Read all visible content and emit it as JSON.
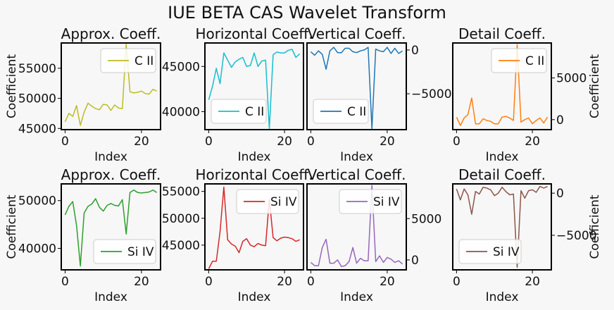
{
  "figure": {
    "title": "IUE BETA CAS Wavelet Transform"
  },
  "chart_data": [
    {
      "type": "line",
      "title": "Approx. Coeff.",
      "xlabel": "Index",
      "ylabel": "Coefficient",
      "ylabel_side": "left",
      "yaxis_side": "left",
      "xlim": [
        -1,
        25
      ],
      "ylim": [
        44800,
        59200
      ],
      "xticks": [
        0,
        20
      ],
      "xtick_labels": [
        "0",
        "20"
      ],
      "yticks": [
        45000,
        50000,
        55000
      ],
      "ytick_labels": [
        "45000",
        "50000",
        "55000"
      ],
      "legend_position": "upper right",
      "series": [
        {
          "name": "C II",
          "color": "#bcbd22",
          "x": [
            0,
            1,
            2,
            3,
            4,
            5,
            6,
            7,
            8,
            9,
            10,
            11,
            12,
            13,
            14,
            15,
            16,
            17,
            18,
            19,
            20,
            21,
            22,
            23,
            24
          ],
          "y": [
            46100,
            47500,
            47000,
            48800,
            45500,
            47700,
            49200,
            48700,
            48300,
            48100,
            49000,
            48900,
            48000,
            48900,
            48400,
            48300,
            59000,
            51100,
            50900,
            51000,
            51200,
            50800,
            50700,
            51500,
            51200
          ]
        }
      ]
    },
    {
      "type": "line",
      "title": "Horizontal Coeff.",
      "xlabel": "Index",
      "ylabel": "",
      "yaxis_side": "left",
      "xlim": [
        -1,
        25
      ],
      "ylim": [
        38000,
        47600
      ],
      "xticks": [
        0,
        20
      ],
      "xtick_labels": [
        "0",
        "20"
      ],
      "yticks": [
        40000,
        45000
      ],
      "ytick_labels": [
        "40000",
        "45000"
      ],
      "legend_position": "lower left",
      "series": [
        {
          "name": "C II",
          "color": "#17becf",
          "x": [
            0,
            1,
            2,
            3,
            4,
            5,
            6,
            7,
            8,
            9,
            10,
            11,
            12,
            13,
            14,
            15,
            16,
            17,
            18,
            19,
            20,
            21,
            22,
            23,
            24
          ],
          "y": [
            41300,
            42800,
            44800,
            43100,
            46500,
            45700,
            44900,
            45500,
            45800,
            46000,
            45000,
            45100,
            46500,
            45000,
            45600,
            45700,
            38100,
            46300,
            46600,
            46500,
            46500,
            46800,
            46900,
            46000,
            46400
          ]
        }
      ]
    },
    {
      "type": "line",
      "title": "Vertical Coeff.",
      "xlabel": "Index",
      "ylabel": "",
      "yaxis_side": "right",
      "xlim": [
        -1,
        25
      ],
      "ylim": [
        -9100,
        800
      ],
      "xticks": [
        0,
        20
      ],
      "xtick_labels": [
        "0",
        "20"
      ],
      "yticks": [
        -5000,
        0
      ],
      "ytick_labels": [
        "−5000",
        "0"
      ],
      "legend_position": "lower left",
      "series": [
        {
          "name": "C II",
          "color": "#1f77b4",
          "x": [
            0,
            1,
            2,
            3,
            4,
            5,
            6,
            7,
            8,
            9,
            10,
            11,
            12,
            13,
            14,
            15,
            16,
            17,
            18,
            19,
            20,
            21,
            22,
            23,
            24
          ],
          "y": [
            -200,
            -600,
            -100,
            -500,
            -2200,
            -100,
            300,
            -300,
            -300,
            200,
            200,
            -200,
            -300,
            -100,
            0,
            300,
            -9000,
            100,
            -100,
            -200,
            300,
            -400,
            200,
            -400,
            -100
          ]
        }
      ]
    },
    {
      "type": "line",
      "title": "Detail Coeff.",
      "xlabel": "Index",
      "ylabel": "Coefficient",
      "ylabel_side": "right",
      "yaxis_side": "right",
      "xlim": [
        -1,
        25
      ],
      "ylim": [
        -1200,
        9200
      ],
      "xticks": [
        0,
        20
      ],
      "xtick_labels": [
        "0",
        "20"
      ],
      "yticks": [
        0,
        5000
      ],
      "ytick_labels": [
        "0",
        "5000"
      ],
      "legend_position": "upper right",
      "series": [
        {
          "name": "C II",
          "color": "#ff7f0e",
          "x": [
            0,
            1,
            2,
            3,
            4,
            5,
            6,
            7,
            8,
            9,
            10,
            11,
            12,
            13,
            14,
            15,
            16,
            17,
            18,
            19,
            20,
            21,
            22,
            23,
            24
          ],
          "y": [
            300,
            -700,
            200,
            600,
            2600,
            -500,
            -500,
            100,
            -100,
            -200,
            -500,
            -500,
            300,
            400,
            200,
            -100,
            9000,
            -300,
            0,
            200,
            -500,
            -100,
            200,
            -400,
            300
          ]
        }
      ]
    },
    {
      "type": "line",
      "title": "Approx. Coeff.",
      "xlabel": "Index",
      "ylabel": "Coefficient",
      "ylabel_side": "left",
      "yaxis_side": "left",
      "xlim": [
        -1,
        25
      ],
      "ylim": [
        35500,
        53500
      ],
      "xticks": [
        0,
        20
      ],
      "xtick_labels": [
        "0",
        "20"
      ],
      "yticks": [
        40000,
        50000
      ],
      "ytick_labels": [
        "40000",
        "50000"
      ],
      "legend_position": "lower right",
      "series": [
        {
          "name": "Si IV",
          "color": "#2ca02c",
          "x": [
            0,
            1,
            2,
            3,
            4,
            5,
            6,
            7,
            8,
            9,
            10,
            11,
            12,
            13,
            14,
            15,
            16,
            17,
            18,
            19,
            20,
            21,
            22,
            23,
            24
          ],
          "y": [
            47000,
            48800,
            49800,
            44800,
            36300,
            47400,
            48800,
            49300,
            50400,
            48600,
            47800,
            49000,
            49400,
            49000,
            48900,
            50200,
            43000,
            51700,
            52200,
            51700,
            51600,
            51700,
            51800,
            52200,
            51700
          ]
        }
      ]
    },
    {
      "type": "line",
      "title": "Horizontal Coeff.",
      "xlabel": "Index",
      "ylabel": "",
      "yaxis_side": "left",
      "xlim": [
        -1,
        25
      ],
      "ylim": [
        40400,
        56400
      ],
      "xticks": [
        0,
        20
      ],
      "xtick_labels": [
        "0",
        "20"
      ],
      "yticks": [
        45000,
        50000,
        55000
      ],
      "ytick_labels": [
        "45000",
        "50000",
        "55000"
      ],
      "legend_position": "upper right",
      "series": [
        {
          "name": "Si IV",
          "color": "#d62728",
          "x": [
            0,
            1,
            2,
            3,
            4,
            5,
            6,
            7,
            8,
            9,
            10,
            11,
            12,
            13,
            14,
            15,
            16,
            17,
            18,
            19,
            20,
            21,
            22,
            23,
            24
          ],
          "y": [
            40600,
            42000,
            42000,
            47500,
            55800,
            46000,
            45200,
            44800,
            43600,
            45700,
            46200,
            45000,
            44700,
            45300,
            45000,
            44900,
            53500,
            46400,
            45800,
            46300,
            46500,
            46400,
            46200,
            45700,
            46000
          ]
        }
      ]
    },
    {
      "type": "line",
      "title": "Vertical Coeff.",
      "xlabel": "Index",
      "ylabel": "",
      "yaxis_side": "right",
      "xlim": [
        -1,
        25
      ],
      "ylim": [
        -1200,
        9200
      ],
      "xticks": [
        0,
        20
      ],
      "xtick_labels": [
        "0",
        "20"
      ],
      "yticks": [
        0,
        5000
      ],
      "ytick_labels": [
        "0",
        "5000"
      ],
      "legend_position": "upper right",
      "series": [
        {
          "name": "Si IV",
          "color": "#9467bd",
          "x": [
            0,
            1,
            2,
            3,
            4,
            5,
            6,
            7,
            8,
            9,
            10,
            11,
            12,
            13,
            14,
            15,
            16,
            17,
            18,
            19,
            20,
            21,
            22,
            23,
            24
          ],
          "y": [
            -300,
            -700,
            -700,
            1500,
            2500,
            -400,
            -400,
            0,
            -800,
            -700,
            -200,
            1500,
            -400,
            200,
            -100,
            -100,
            9000,
            -200,
            500,
            -300,
            300,
            100,
            -300,
            -100,
            -500
          ]
        }
      ]
    },
    {
      "type": "line",
      "title": "Detail Coeff.",
      "xlabel": "Index",
      "ylabel": "Coefficient",
      "ylabel_side": "right",
      "yaxis_side": "right",
      "xlim": [
        -1,
        25
      ],
      "ylim": [
        -9100,
        1100
      ],
      "xticks": [
        0,
        20
      ],
      "xtick_labels": [
        "0",
        "20"
      ],
      "yticks": [
        -5000,
        0
      ],
      "ytick_labels": [
        "−5000",
        "0"
      ],
      "legend_position": "lower left",
      "series": [
        {
          "name": "Si IV",
          "color": "#8c564b",
          "x": [
            0,
            1,
            2,
            3,
            4,
            5,
            6,
            7,
            8,
            9,
            10,
            11,
            12,
            13,
            14,
            15,
            16,
            17,
            18,
            19,
            20,
            21,
            22,
            23,
            24
          ],
          "y": [
            500,
            -800,
            500,
            -200,
            -2500,
            200,
            -100,
            700,
            600,
            400,
            -300,
            0,
            700,
            200,
            -200,
            -100,
            -8800,
            300,
            -600,
            300,
            400,
            100,
            800,
            600,
            800
          ]
        }
      ]
    }
  ]
}
